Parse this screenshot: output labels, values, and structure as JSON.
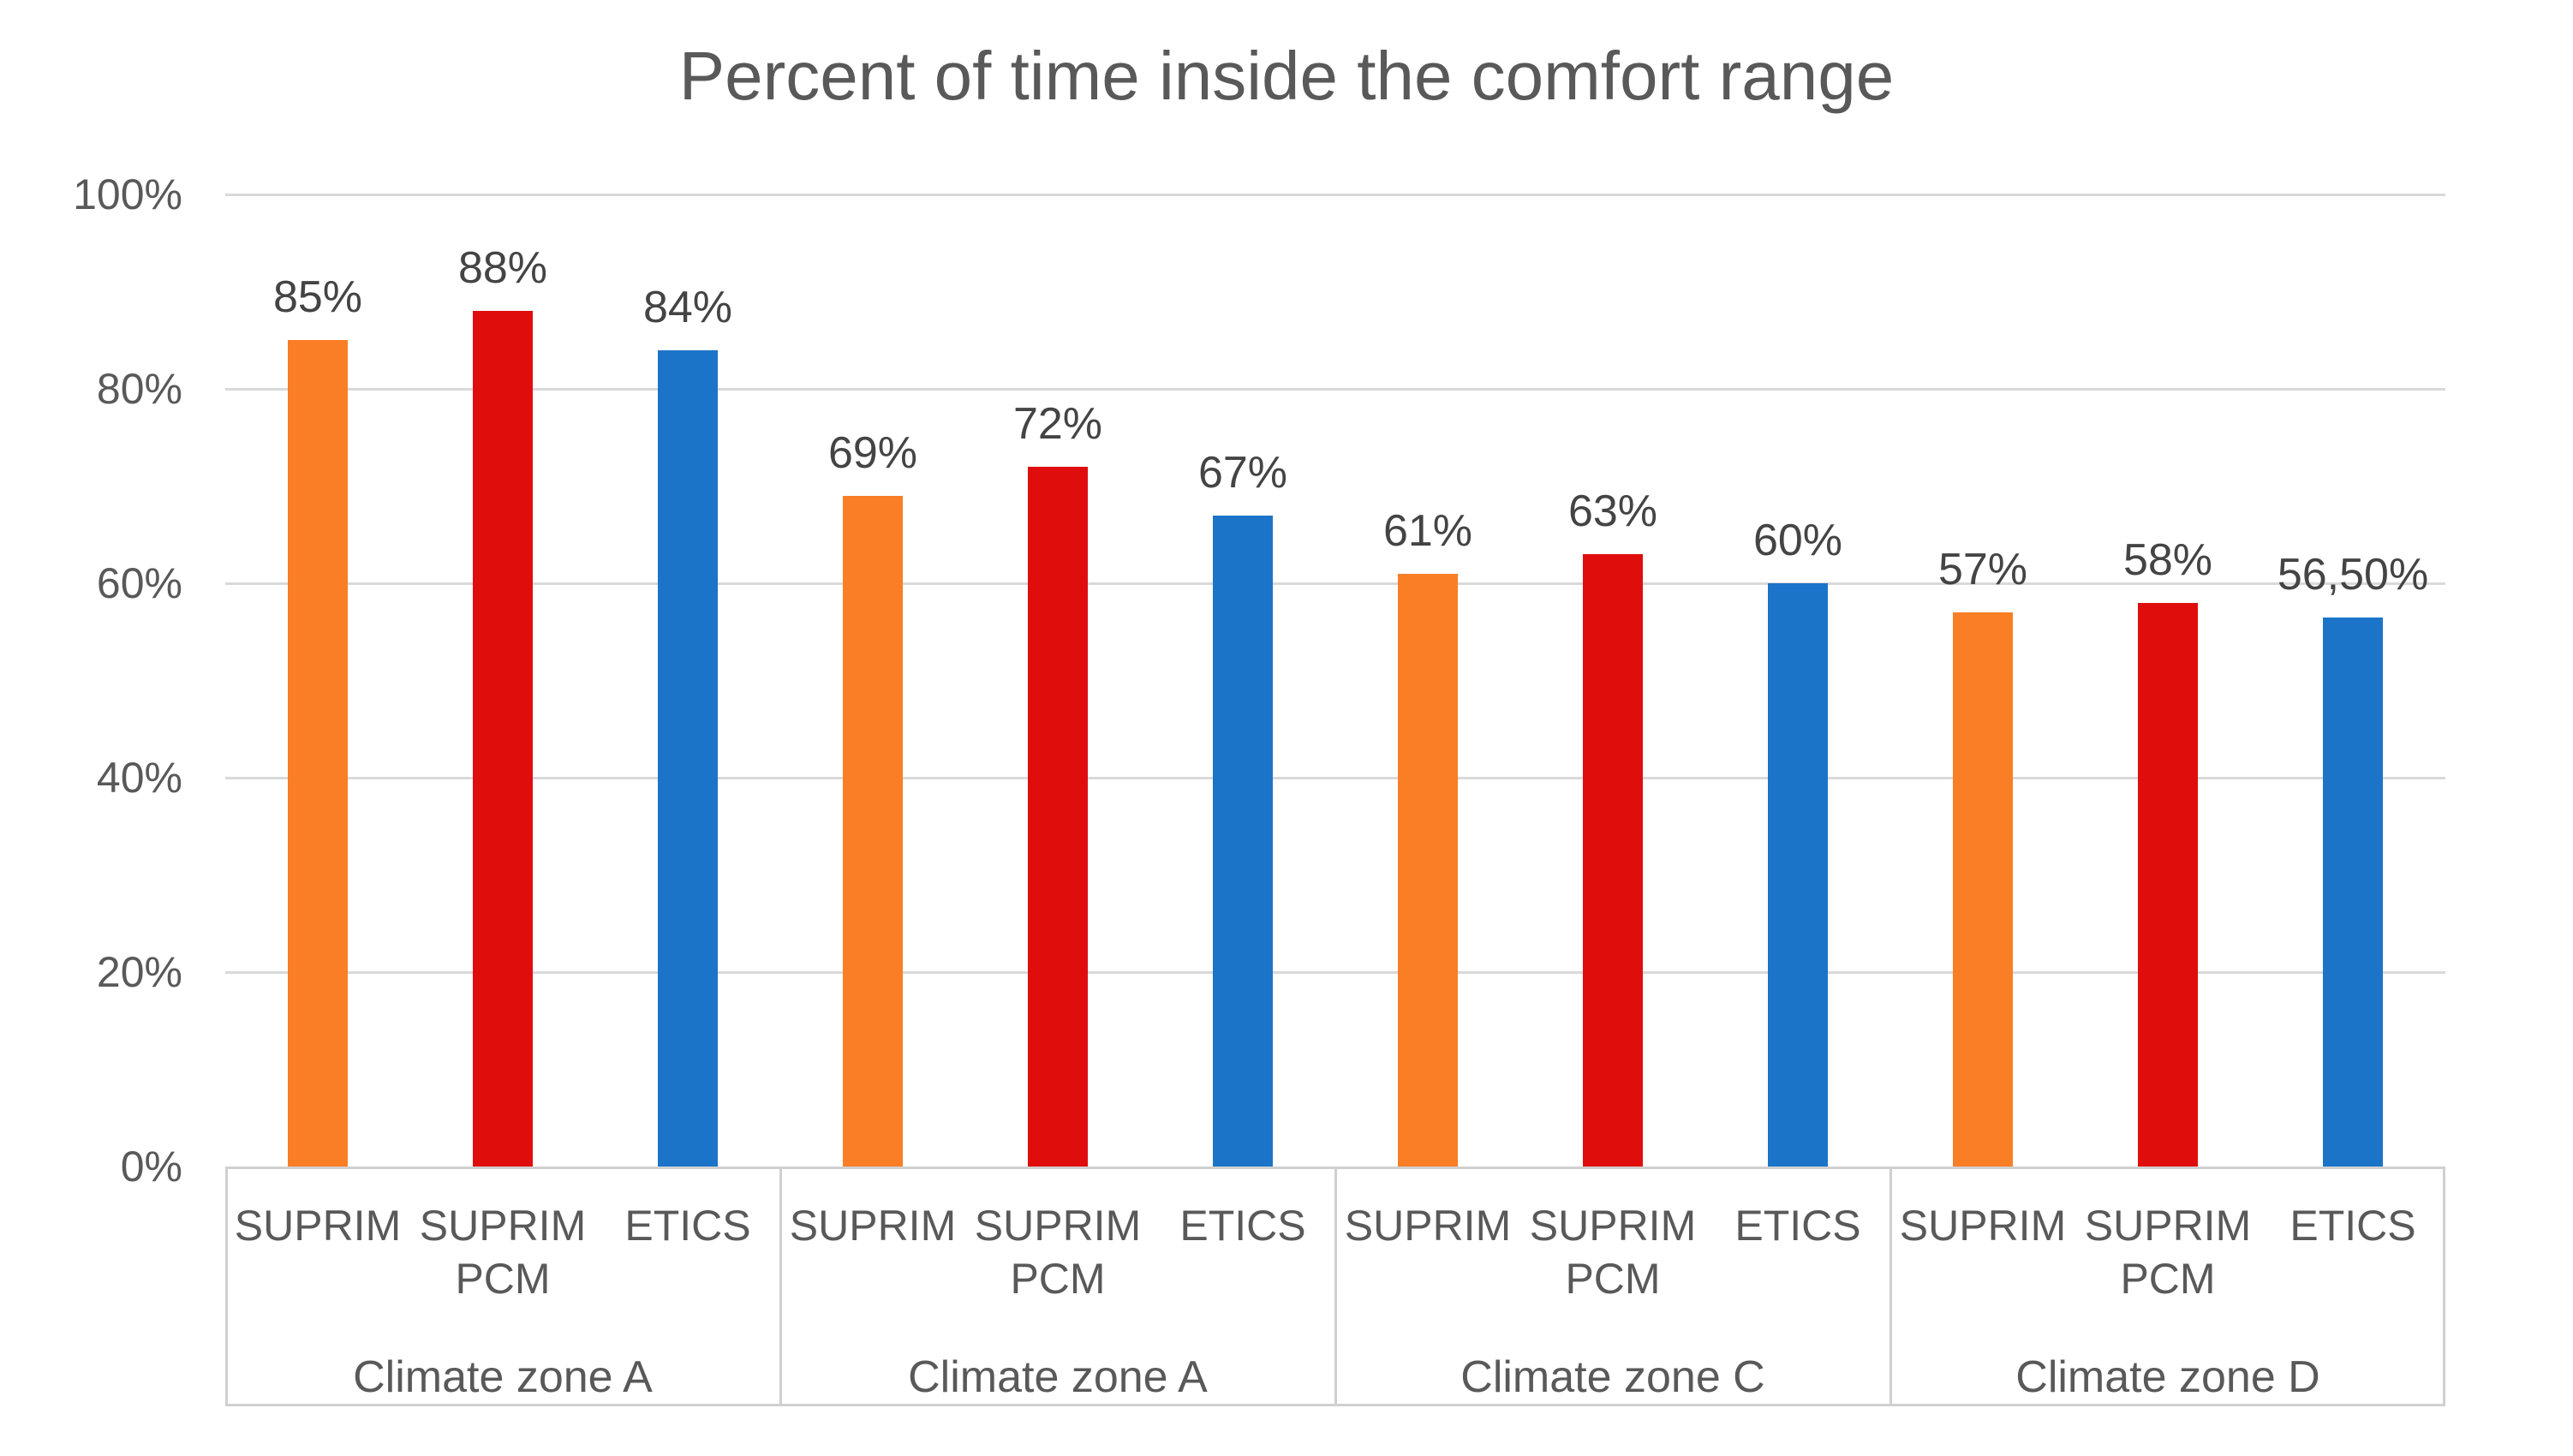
{
  "chart_data": {
    "type": "bar",
    "title": "Percent of time inside the comfort range",
    "categories": [
      "Climate zone A",
      "Climate zone A",
      "Climate zone C",
      "Climate zone D"
    ],
    "series": [
      {
        "name": "SUPRIM",
        "color": "#F97E26",
        "values": [
          85,
          69,
          61,
          57
        ],
        "labels": [
          "85%",
          "69%",
          "61%",
          "57%"
        ]
      },
      {
        "name": "SUPRIM PCM",
        "color": "#E00D0D",
        "values": [
          88,
          72,
          63,
          58
        ],
        "labels": [
          "88%",
          "72%",
          "63%",
          "58%"
        ]
      },
      {
        "name": "ETICS",
        "color": "#1B74C8",
        "values": [
          84,
          67,
          60,
          56.5
        ],
        "labels": [
          "84%",
          "67%",
          "60%",
          "56,50%"
        ]
      }
    ],
    "ylim": [
      0,
      100
    ],
    "yticks": [
      0,
      20,
      40,
      60,
      80,
      100
    ],
    "ytick_labels": [
      "0%",
      "20%",
      "40%",
      "60%",
      "80%",
      "100%"
    ],
    "grid": true,
    "legend": "none",
    "colors": {
      "background": "#FFFFFF",
      "title_text": "#595959",
      "axis_text": "#595959",
      "value_label_text": "#444444",
      "gridline": "#D9D9D9",
      "axis_border": "#D0D0D0"
    }
  }
}
